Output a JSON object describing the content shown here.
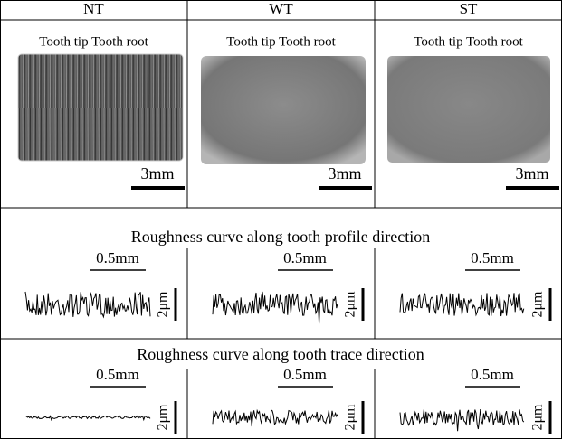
{
  "columns": [
    {
      "label": "NT",
      "caption": "Tooth tip Tooth root",
      "scale": "3mm"
    },
    {
      "label": "WT",
      "caption": "Tooth tip Tooth root",
      "scale": "3mm"
    },
    {
      "label": "ST",
      "caption": "Tooth tip Tooth root",
      "scale": "3mm"
    }
  ],
  "sections": [
    {
      "title": "Roughness curve along tooth profile direction",
      "columns": [
        {
          "scale_x": "0.5mm",
          "scale_y": "2μm"
        },
        {
          "scale_x": "0.5mm",
          "scale_y": "2μm"
        },
        {
          "scale_x": "0.5mm",
          "scale_y": "2μm"
        }
      ]
    },
    {
      "title": "Roughness curve along tooth trace direction",
      "columns": [
        {
          "scale_x": "0.5mm",
          "scale_y": "2μm"
        },
        {
          "scale_x": "0.5mm",
          "scale_y": "2μm"
        },
        {
          "scale_x": "0.5mm",
          "scale_y": "2μm"
        }
      ]
    }
  ]
}
